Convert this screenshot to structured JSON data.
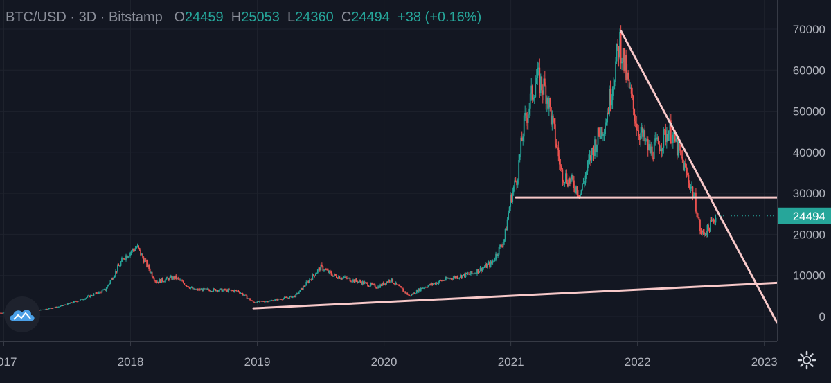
{
  "header": {
    "symbol": "BTC/USD",
    "interval": "3D",
    "exchange": "Bitstamp",
    "sep": "·",
    "open_label": "O",
    "open": "24459",
    "high_label": "H",
    "high": "25053",
    "low_label": "L",
    "low": "24360",
    "close_label": "C",
    "close": "24494",
    "change": "+38 (+0.16%)"
  },
  "price_tag": "24494",
  "colors": {
    "up": "#26a69a",
    "down": "#ef5350",
    "line": "#f8c9c9",
    "bg": "#131722"
  },
  "icons": {
    "logo": "cloud-mountain-icon",
    "settings": "gear-icon"
  },
  "chart_data": {
    "type": "line",
    "xlabel": "",
    "ylabel": "",
    "x_ticks": [
      "2017",
      "2018",
      "2019",
      "2020",
      "2021",
      "2022",
      "2023"
    ],
    "y_ticks": [
      0,
      10000,
      20000,
      30000,
      40000,
      50000,
      60000,
      70000
    ],
    "ylim": [
      -2000,
      72000
    ],
    "xlim": [
      2016.97,
      2023.1
    ],
    "series": [
      {
        "x": [
          2016.97,
          2017.2,
          2017.45,
          2017.6,
          2017.8,
          2017.95,
          2018.05,
          2018.2,
          2018.35,
          2018.5,
          2018.7,
          2018.85,
          2018.97,
          2019.1,
          2019.3,
          2019.5,
          2019.6,
          2019.8,
          2019.95,
          2020.05,
          2020.2,
          2020.3,
          2020.5,
          2020.7,
          2020.85,
          2020.95,
          2021.0,
          2021.05,
          2021.1,
          2021.2,
          2021.28,
          2021.4,
          2021.5,
          2021.55,
          2021.65,
          2021.75,
          2021.86,
          2021.92,
          2022.0,
          2022.1,
          2022.2,
          2022.25,
          2022.35,
          2022.45,
          2022.5,
          2022.55,
          2022.62
        ],
        "y": [
          900,
          1100,
          2500,
          4000,
          6500,
          14500,
          17000,
          8500,
          9500,
          6500,
          6500,
          6200,
          3500,
          3800,
          5000,
          12000,
          10000,
          8500,
          7200,
          9000,
          5000,
          7000,
          9200,
          10500,
          13000,
          19000,
          29000,
          34000,
          46000,
          58000,
          55000,
          35000,
          32000,
          30000,
          41000,
          48000,
          67000,
          57000,
          46000,
          40000,
          43000,
          46000,
          38000,
          29000,
          20000,
          21000,
          24494
        ]
      }
    ],
    "annotations": [
      {
        "x1": 2018.97,
        "y1": 2000,
        "x2": 2023.1,
        "y2": 8200
      },
      {
        "x1": 2021.04,
        "y1": 29000,
        "x2": 2023.1,
        "y2": 29000
      },
      {
        "x1": 2021.87,
        "y1": 69500,
        "x2": 2023.1,
        "y2": -1500
      }
    ]
  }
}
